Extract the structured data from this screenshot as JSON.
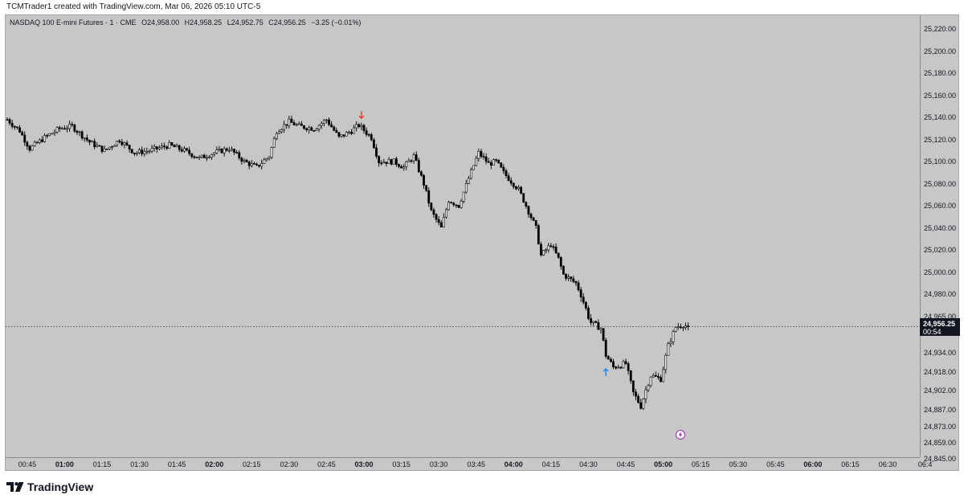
{
  "caption": "TCMTrader1 created with TradingView.com, Mar 06, 2026 05:10 UTC-5",
  "legend": {
    "symbol": "NASDAQ 100 E-mini Futures · 1 · CME",
    "open": "O24,958.00",
    "high": "H24,958.25",
    "low": "L24,952.75",
    "close": "C24,956.25",
    "change": "−3.25 (−0.01%)"
  },
  "last_price": {
    "value": "24,956.25",
    "countdown": "00:54"
  },
  "footer": {
    "logo_text": "TradingView"
  },
  "colors": {
    "background": "#c7c7c7",
    "candle": "#000000",
    "sell_arrow": "#e53935",
    "buy_arrow": "#1e88e5",
    "flash_icon": "#9c27b0"
  },
  "icons": {
    "sell_marker": "arrow-down-icon",
    "buy_marker": "arrow-up-icon",
    "alert": "lightning-icon",
    "logo": "tradingview-logo-icon"
  },
  "chart_data": {
    "type": "candlestick",
    "interval_minutes": 1,
    "x_start": "00:37",
    "x_end": "06:45",
    "y_ticks": [
      "25,220.00",
      "25,200.00",
      "25,180.00",
      "25,160.00",
      "25,140.00",
      "25,120.00",
      "25,100.00",
      "25,080.00",
      "25,060.00",
      "25,040.00",
      "25,020.00",
      "25,000.00",
      "24,980.00",
      "24,965.00",
      "24,934.00",
      "24,918.00",
      "24,902.00",
      "24,887.00",
      "24,873.00",
      "24,859.00",
      "24,845.00"
    ],
    "x_ticks": [
      {
        "label": "00:45",
        "bold": false
      },
      {
        "label": "01:00",
        "bold": true
      },
      {
        "label": "01:15",
        "bold": false
      },
      {
        "label": "01:30",
        "bold": false
      },
      {
        "label": "01:45",
        "bold": false
      },
      {
        "label": "02:00",
        "bold": true
      },
      {
        "label": "02:15",
        "bold": false
      },
      {
        "label": "02:30",
        "bold": false
      },
      {
        "label": "02:45",
        "bold": false
      },
      {
        "label": "03:00",
        "bold": true
      },
      {
        "label": "03:15",
        "bold": false
      },
      {
        "label": "03:30",
        "bold": false
      },
      {
        "label": "03:45",
        "bold": false
      },
      {
        "label": "04:00",
        "bold": true
      },
      {
        "label": "04:15",
        "bold": false
      },
      {
        "label": "04:30",
        "bold": false
      },
      {
        "label": "04:45",
        "bold": false
      },
      {
        "label": "05:00",
        "bold": true
      },
      {
        "label": "05:15",
        "bold": false
      },
      {
        "label": "05:30",
        "bold": false
      },
      {
        "label": "05:45",
        "bold": false
      },
      {
        "label": "06:00",
        "bold": true
      },
      {
        "label": "06:15",
        "bold": false
      },
      {
        "label": "06:30",
        "bold": false
      },
      {
        "label": "06:4",
        "bold": false
      }
    ],
    "close_anchors": [
      [
        "00:37",
        25138
      ],
      [
        "00:42",
        25128
      ],
      [
        "00:46",
        25112
      ],
      [
        "00:52",
        25122
      ],
      [
        "00:58",
        25130
      ],
      [
        "01:03",
        25132
      ],
      [
        "01:10",
        25118
      ],
      [
        "01:16",
        25110
      ],
      [
        "01:22",
        25120
      ],
      [
        "01:28",
        25108
      ],
      [
        "01:34",
        25110
      ],
      [
        "01:42",
        25115
      ],
      [
        "01:48",
        25110
      ],
      [
        "01:54",
        25103
      ],
      [
        "02:00",
        25108
      ],
      [
        "02:06",
        25112
      ],
      [
        "02:12",
        25100
      ],
      [
        "02:17",
        25095
      ],
      [
        "02:22",
        25105
      ],
      [
        "02:25",
        25128
      ],
      [
        "02:30",
        25136
      ],
      [
        "02:34",
        25132
      ],
      [
        "02:40",
        25130
      ],
      [
        "02:45",
        25138
      ],
      [
        "02:50",
        25122
      ],
      [
        "02:55",
        25128
      ],
      [
        "02:58",
        25133
      ],
      [
        "03:03",
        25122
      ],
      [
        "03:06",
        25100
      ],
      [
        "03:12",
        25100
      ],
      [
        "03:16",
        25095
      ],
      [
        "03:20",
        25105
      ],
      [
        "03:24",
        25080
      ],
      [
        "03:27",
        25055
      ],
      [
        "03:31",
        25040
      ],
      [
        "03:34",
        25065
      ],
      [
        "03:38",
        25060
      ],
      [
        "03:42",
        25085
      ],
      [
        "03:46",
        25108
      ],
      [
        "03:50",
        25098
      ],
      [
        "03:53",
        25100
      ],
      [
        "03:56",
        25090
      ],
      [
        "04:02",
        25075
      ],
      [
        "04:06",
        25055
      ],
      [
        "04:09",
        25040
      ],
      [
        "04:11",
        25015
      ],
      [
        "04:15",
        25025
      ],
      [
        "04:18",
        25012
      ],
      [
        "04:20",
        24998
      ],
      [
        "04:25",
        24990
      ],
      [
        "04:28",
        24975
      ],
      [
        "04:31",
        24960
      ],
      [
        "04:35",
        24955
      ],
      [
        "04:37",
        24932
      ],
      [
        "04:40",
        24922
      ],
      [
        "04:45",
        24925
      ],
      [
        "04:48",
        24900
      ],
      [
        "04:51",
        24890
      ],
      [
        "04:55",
        24915
      ],
      [
        "04:59",
        24912
      ],
      [
        "05:02",
        24940
      ],
      [
        "05:05",
        24956
      ],
      [
        "05:08",
        24958
      ],
      [
        "05:10",
        24956.25
      ]
    ],
    "trade_markers": [
      {
        "side": "sell",
        "time": "02:59",
        "price": 25142
      },
      {
        "side": "buy",
        "time": "04:37",
        "price": 24918
      }
    ],
    "last_price": 24956.25
  }
}
